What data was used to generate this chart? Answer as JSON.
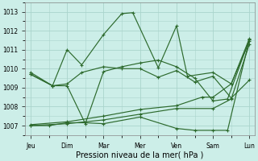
{
  "title": "Pression niveau de la mer( hPa )",
  "background_color": "#cceee8",
  "grid_color": "#aad4cc",
  "line_color": "#2d6a2d",
  "xtick_labels": [
    "Jeu",
    "Dim",
    "Mar",
    "Mer",
    "Ven",
    "Sam",
    "Lun"
  ],
  "xtick_positions": [
    0,
    1,
    2,
    3,
    4,
    5,
    6
  ],
  "ylim": [
    1006.5,
    1013.5
  ],
  "yticks": [
    1007,
    1008,
    1009,
    1010,
    1011,
    1012,
    1013
  ],
  "series": [
    {
      "x": [
        0,
        0.6,
        1.0,
        1.4,
        2.0,
        2.5,
        2.8,
        3.5,
        4.0,
        4.3,
        5.0,
        5.5,
        6.0
      ],
      "y": [
        1009.7,
        1009.1,
        1011.0,
        1010.2,
        1011.8,
        1012.9,
        1012.95,
        1010.05,
        1012.25,
        1009.6,
        1009.8,
        1009.2,
        1011.6
      ]
    },
    {
      "x": [
        0,
        0.6,
        1.0,
        1.4,
        2.0,
        2.5,
        3.0,
        3.5,
        4.0,
        4.5,
        5.0,
        5.5,
        6.0
      ],
      "y": [
        1009.8,
        1009.1,
        1009.2,
        1009.8,
        1010.1,
        1010.0,
        1010.0,
        1009.55,
        1009.9,
        1009.3,
        1009.6,
        1008.45,
        1009.4
      ]
    },
    {
      "x": [
        0,
        1.0,
        2.0,
        3.0,
        4.0,
        4.7,
        5.0,
        5.5,
        6.0
      ],
      "y": [
        1007.05,
        1007.2,
        1007.5,
        1007.85,
        1008.05,
        1008.5,
        1008.5,
        1009.2,
        1011.45
      ]
    },
    {
      "x": [
        0,
        1.0,
        2.0,
        3.0,
        4.0,
        5.0,
        5.5,
        6.0
      ],
      "y": [
        1007.0,
        1007.1,
        1007.3,
        1007.6,
        1007.9,
        1007.9,
        1008.4,
        1011.3
      ]
    },
    {
      "x": [
        0,
        0.5,
        1.0,
        1.5,
        2.0,
        3.0,
        4.0,
        4.5,
        5.0,
        5.4,
        6.0
      ],
      "y": [
        1007.0,
        1007.0,
        1007.15,
        1007.15,
        1007.1,
        1007.45,
        1006.85,
        1006.75,
        1006.75,
        1006.75,
        1011.55
      ]
    },
    {
      "x": [
        0,
        0.6,
        1.0,
        1.5,
        2.0,
        2.5,
        3.0,
        3.5,
        4.0,
        4.5,
        5.0,
        5.4,
        6.0
      ],
      "y": [
        1009.7,
        1009.1,
        1009.1,
        1007.1,
        1009.85,
        1010.1,
        1010.3,
        1010.45,
        1010.1,
        1009.5,
        1008.3,
        1008.4,
        1011.55
      ]
    }
  ]
}
